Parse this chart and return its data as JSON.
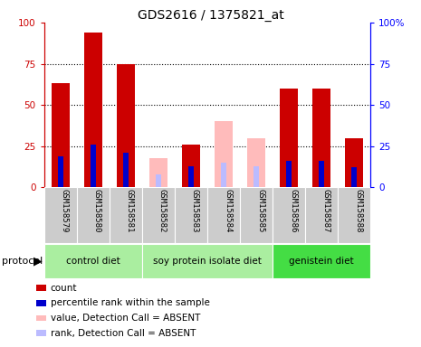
{
  "title": "GDS2616 / 1375821_at",
  "samples": [
    "GSM158579",
    "GSM158580",
    "GSM158581",
    "GSM158582",
    "GSM158583",
    "GSM158584",
    "GSM158585",
    "GSM158586",
    "GSM158587",
    "GSM158588"
  ],
  "count_present": [
    63,
    94,
    75,
    0,
    26,
    0,
    0,
    60,
    60,
    30
  ],
  "count_absent_value": [
    0,
    0,
    0,
    18,
    0,
    40,
    30,
    0,
    0,
    0
  ],
  "percentile_present": [
    19,
    26,
    21,
    0,
    13,
    15,
    13,
    16,
    16,
    12
  ],
  "percentile_absent": [
    0,
    0,
    0,
    8,
    0,
    15,
    13,
    0,
    0,
    0
  ],
  "groups": [
    {
      "label": "control diet",
      "start": 0,
      "end": 2,
      "color": "#aaeea0"
    },
    {
      "label": "soy protein isolate diet",
      "start": 3,
      "end": 6,
      "color": "#aaeea0"
    },
    {
      "label": "genistein diet",
      "start": 7,
      "end": 9,
      "color": "#44dd44"
    }
  ],
  "ylim": [
    0,
    100
  ],
  "color_red": "#cc0000",
  "color_pink": "#ffbbbb",
  "color_blue": "#0000cc",
  "color_lightblue": "#bbbbff",
  "sample_box_color": "#cccccc",
  "bar_width": 0.55
}
